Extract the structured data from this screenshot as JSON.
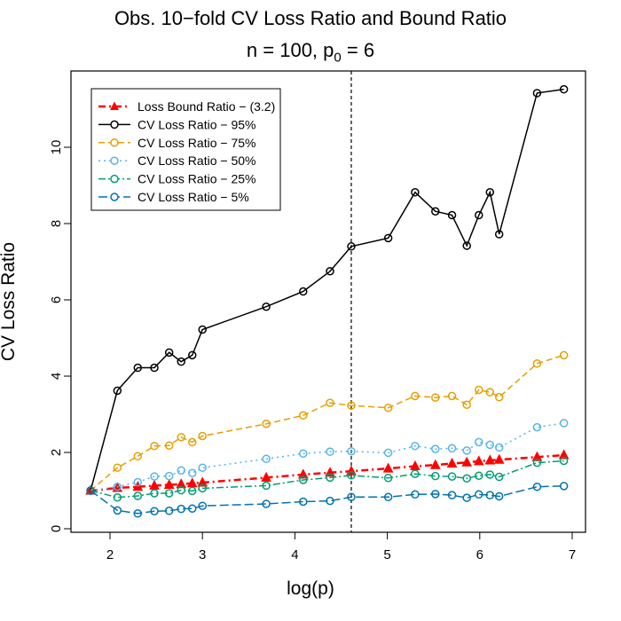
{
  "chart_data": {
    "type": "line",
    "title_main": "Obs. 10−fold CV Loss Ratio and Bound Ratio",
    "subtitle_prefix": "n = 100, p",
    "subtitle_sub": "0",
    "subtitle_suffix": " = 6",
    "xlabel": "log(p)",
    "ylabel": "CV Loss Ratio",
    "xlim": [
      1.7,
      7.0
    ],
    "ylim": [
      -0.3,
      12.0
    ],
    "xticks": [
      "2",
      "3",
      "4",
      "5",
      "6",
      "7"
    ],
    "yticks": [
      "0",
      "2",
      "4",
      "6",
      "8",
      "10"
    ],
    "vline_x": 4.61,
    "legend_position": "top-left",
    "x": [
      1.79,
      2.08,
      2.3,
      2.48,
      2.64,
      2.77,
      2.89,
      3.0,
      3.69,
      4.09,
      4.38,
      4.61,
      5.01,
      5.3,
      5.52,
      5.7,
      5.86,
      5.99,
      6.11,
      6.21,
      6.62,
      6.91
    ],
    "series": [
      {
        "name": "Loss Bound Ratio − (3.2)",
        "color": "#ff0000",
        "marker": "triangle",
        "dash": "8,4,2,4",
        "width": 2.5,
        "x": [
          1.79,
          2.08,
          2.3,
          2.48,
          2.64,
          2.77,
          2.89,
          3.0,
          3.69,
          4.09,
          4.38,
          4.61,
          5.01,
          5.3,
          5.52,
          5.7,
          5.86,
          5.99,
          6.11,
          6.21,
          6.62,
          6.91
        ],
        "values": [
          1.0,
          1.07,
          1.1,
          1.13,
          1.15,
          1.17,
          1.19,
          1.21,
          1.34,
          1.42,
          1.47,
          1.51,
          1.58,
          1.64,
          1.67,
          1.71,
          1.74,
          1.77,
          1.79,
          1.81,
          1.88,
          1.93
        ]
      },
      {
        "name": "CV Loss Ratio − 95%",
        "color": "#000000",
        "marker": "circle",
        "dash": "",
        "width": 1.5,
        "x": [
          1.79,
          2.08,
          2.3,
          2.48,
          2.64,
          2.77,
          2.89,
          3.0,
          3.69,
          4.09,
          4.38,
          4.61,
          5.01,
          5.3,
          5.52,
          5.7,
          5.86,
          5.99,
          6.11,
          6.21,
          6.62,
          6.91
        ],
        "values": [
          1.0,
          3.62,
          4.22,
          4.22,
          4.62,
          4.38,
          4.55,
          5.22,
          5.82,
          6.22,
          6.75,
          7.4,
          7.62,
          8.82,
          8.32,
          8.22,
          7.42,
          8.22,
          8.82,
          7.72,
          11.42,
          11.52
        ]
      },
      {
        "name": "CV Loss Ratio − 75%",
        "color": "#e69f00",
        "marker": "circle",
        "dash": "7,4",
        "width": 1.5,
        "x": [
          1.79,
          2.08,
          2.3,
          2.48,
          2.64,
          2.77,
          2.89,
          3.0,
          3.69,
          4.09,
          4.38,
          4.61,
          5.01,
          5.3,
          5.52,
          5.7,
          5.86,
          5.99,
          6.11,
          6.21,
          6.62,
          6.91
        ],
        "values": [
          1.0,
          1.6,
          1.9,
          2.17,
          2.18,
          2.4,
          2.27,
          2.43,
          2.75,
          2.97,
          3.3,
          3.23,
          3.17,
          3.48,
          3.44,
          3.48,
          3.25,
          3.64,
          3.58,
          3.45,
          4.33,
          4.55
        ]
      },
      {
        "name": "CV Loss Ratio − 50%",
        "color": "#56b4e9",
        "marker": "circle",
        "dash": "2,4",
        "width": 1.5,
        "x": [
          1.79,
          2.08,
          2.3,
          2.48,
          2.64,
          2.77,
          2.89,
          3.0,
          3.69,
          4.09,
          4.38,
          4.61,
          5.01,
          5.3,
          5.52,
          5.7,
          5.86,
          5.99,
          6.11,
          6.21,
          6.62,
          6.91
        ],
        "values": [
          1.0,
          1.1,
          1.22,
          1.37,
          1.38,
          1.53,
          1.46,
          1.6,
          1.83,
          1.97,
          2.02,
          2.03,
          1.99,
          2.17,
          2.09,
          2.11,
          2.05,
          2.27,
          2.2,
          2.13,
          2.66,
          2.77
        ]
      },
      {
        "name": "CV Loss Ratio − 25%",
        "color": "#009e73",
        "marker": "circle",
        "dash": "8,3,2,3",
        "width": 1.5,
        "x": [
          1.79,
          2.08,
          2.3,
          2.48,
          2.64,
          2.77,
          2.89,
          3.0,
          3.69,
          4.09,
          4.38,
          4.61,
          5.01,
          5.3,
          5.52,
          5.7,
          5.86,
          5.99,
          6.11,
          6.21,
          6.62,
          6.91
        ],
        "values": [
          1.0,
          0.82,
          0.86,
          0.93,
          0.93,
          1.01,
          0.99,
          1.06,
          1.13,
          1.28,
          1.34,
          1.4,
          1.33,
          1.44,
          1.38,
          1.37,
          1.32,
          1.39,
          1.42,
          1.36,
          1.73,
          1.78
        ]
      },
      {
        "name": "CV Loss Ratio − 5%",
        "color": "#0072b2",
        "marker": "circle",
        "dash": "10,4",
        "width": 1.5,
        "x": [
          1.79,
          2.08,
          2.3,
          2.48,
          2.64,
          2.77,
          2.89,
          3.0,
          3.69,
          4.09,
          4.38,
          4.61,
          5.01,
          5.3,
          5.52,
          5.7,
          5.86,
          5.99,
          6.11,
          6.21,
          6.62,
          6.91
        ],
        "values": [
          1.0,
          0.48,
          0.4,
          0.46,
          0.47,
          0.52,
          0.53,
          0.6,
          0.65,
          0.71,
          0.73,
          0.83,
          0.83,
          0.9,
          0.91,
          0.88,
          0.81,
          0.9,
          0.88,
          0.85,
          1.1,
          1.12
        ]
      }
    ]
  }
}
